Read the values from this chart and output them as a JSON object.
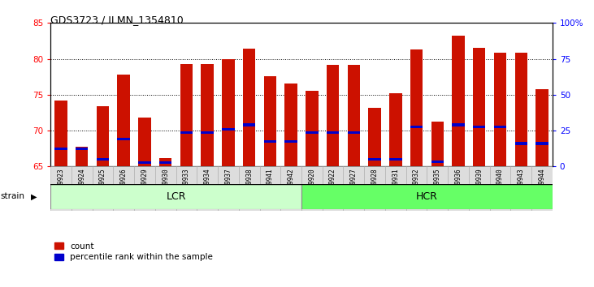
{
  "title": "GDS3723 / ILMN_1354810",
  "samples": [
    "GSM429923",
    "GSM429924",
    "GSM429925",
    "GSM429926",
    "GSM429929",
    "GSM429930",
    "GSM429933",
    "GSM429934",
    "GSM429937",
    "GSM429938",
    "GSM429941",
    "GSM429942",
    "GSM429920",
    "GSM429922",
    "GSM429927",
    "GSM429928",
    "GSM429931",
    "GSM429932",
    "GSM429935",
    "GSM429936",
    "GSM429939",
    "GSM429940",
    "GSM429943",
    "GSM429944"
  ],
  "count_values": [
    74.2,
    67.8,
    73.4,
    77.8,
    71.8,
    66.2,
    79.3,
    79.3,
    80.0,
    81.4,
    77.6,
    76.6,
    75.6,
    79.2,
    79.2,
    73.2,
    75.2,
    81.3,
    71.2,
    83.2,
    81.5,
    80.9,
    80.8,
    75.8
  ],
  "percentile_values": [
    67.5,
    67.5,
    66.0,
    68.8,
    65.5,
    65.5,
    69.7,
    69.7,
    70.2,
    70.8,
    68.5,
    68.5,
    69.7,
    69.7,
    69.7,
    66.0,
    66.0,
    70.5,
    65.7,
    70.8,
    70.5,
    70.5,
    68.2,
    68.2
  ],
  "lcr_count": 12,
  "hcr_count": 12,
  "ylim_left": [
    65,
    85
  ],
  "ylim_right": [
    0,
    100
  ],
  "yticks_left": [
    65,
    70,
    75,
    80,
    85
  ],
  "yticks_right": [
    0,
    25,
    50,
    75,
    100
  ],
  "ytick_right_labels": [
    "0",
    "25",
    "50",
    "75",
    "100%"
  ],
  "bar_color": "#cc1100",
  "percentile_color": "#0000cc",
  "lcr_color": "#ccffcc",
  "hcr_color": "#66ff66",
  "background_color": "#ffffff",
  "grid_color": "#000000",
  "bar_width": 0.6,
  "tick_bg_color": "#dddddd"
}
